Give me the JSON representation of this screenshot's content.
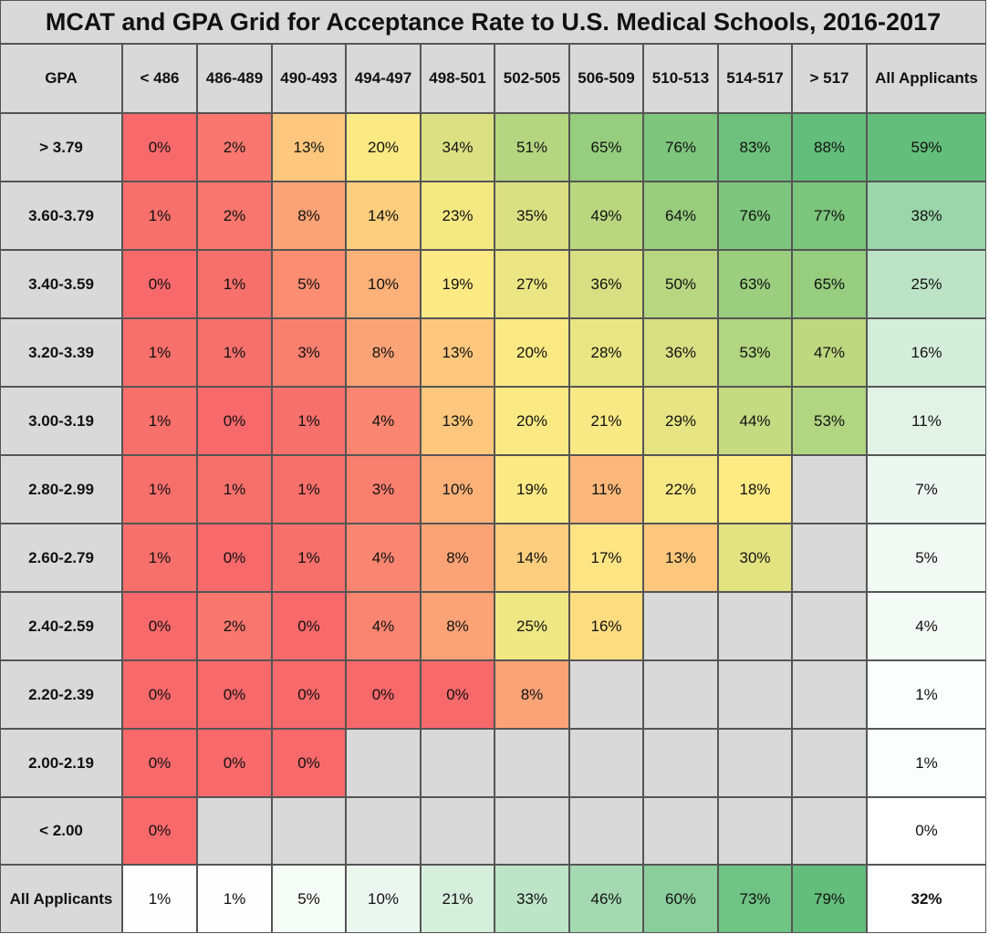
{
  "chart_data": {
    "type": "heatmap",
    "title": "MCAT and GPA Grid for Acceptance Rate to U.S. Medical Schools, 2016-2017",
    "corner_label": "GPA",
    "columns": [
      "< 486",
      "486-489",
      "490-493",
      "494-497",
      "498-501",
      "502-505",
      "506-509",
      "510-513",
      "514-517",
      "> 517",
      "All Applicants"
    ],
    "rows": [
      "> 3.79",
      "3.60-3.79",
      "3.40-3.59",
      "3.20-3.39",
      "3.00-3.19",
      "2.80-2.99",
      "2.60-2.79",
      "2.40-2.59",
      "2.20-2.39",
      "2.00-2.19",
      "< 2.00",
      "All Applicants"
    ],
    "values": [
      [
        0,
        2,
        13,
        20,
        34,
        51,
        65,
        76,
        83,
        88,
        59
      ],
      [
        1,
        2,
        8,
        14,
        23,
        35,
        49,
        64,
        76,
        77,
        38
      ],
      [
        0,
        1,
        5,
        10,
        19,
        27,
        36,
        50,
        63,
        65,
        25
      ],
      [
        1,
        1,
        3,
        8,
        13,
        20,
        28,
        36,
        53,
        47,
        16
      ],
      [
        1,
        0,
        1,
        4,
        13,
        20,
        21,
        29,
        44,
        53,
        11
      ],
      [
        1,
        1,
        1,
        3,
        10,
        19,
        11,
        22,
        18,
        null,
        7
      ],
      [
        1,
        0,
        1,
        4,
        8,
        14,
        17,
        13,
        30,
        null,
        5
      ],
      [
        0,
        2,
        0,
        4,
        8,
        25,
        16,
        null,
        null,
        null,
        4
      ],
      [
        0,
        0,
        0,
        0,
        0,
        8,
        null,
        null,
        null,
        null,
        1
      ],
      [
        0,
        0,
        0,
        null,
        null,
        null,
        null,
        null,
        null,
        null,
        1
      ],
      [
        0,
        null,
        null,
        null,
        null,
        null,
        null,
        null,
        null,
        null,
        0
      ],
      [
        1,
        1,
        5,
        10,
        21,
        33,
        46,
        60,
        73,
        79,
        32
      ]
    ],
    "value_suffix": "%",
    "colors": {
      "grid_low": "#f8696b",
      "grid_mid": "#ffeb84",
      "grid_high": "#63be7b",
      "total_low": "#ffffff",
      "total_high": "#63be7b",
      "empty": "#d9d9d9",
      "header": "#d9d9d9"
    }
  }
}
